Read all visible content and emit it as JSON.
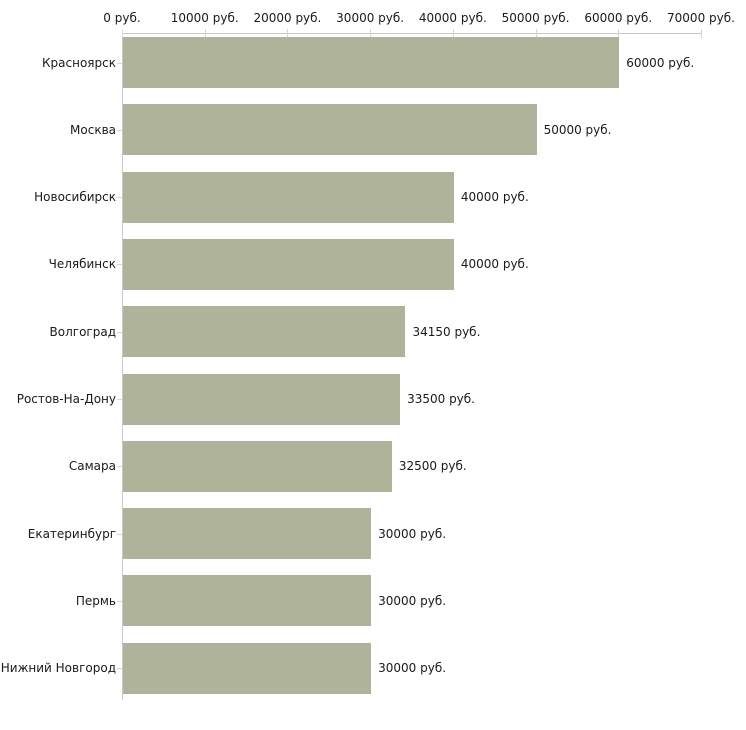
{
  "chart_data": {
    "type": "bar",
    "orientation": "horizontal",
    "title": "",
    "xlabel": "",
    "ylabel": "",
    "unit": "руб.",
    "categories": [
      "Красноярск",
      "Москва",
      "Новосибирск",
      "Челябинск",
      "Волгоград",
      "Ростов-На-Дону",
      "Самара",
      "Екатеринбург",
      "Пермь",
      "Нижний Новгород"
    ],
    "values": [
      60000,
      50000,
      40000,
      40000,
      34150,
      33500,
      32500,
      30000,
      30000,
      30000
    ],
    "value_labels": [
      "60000 руб.",
      "50000 руб.",
      "40000 руб.",
      "40000 руб.",
      "34150 руб.",
      "33500 руб.",
      "32500 руб.",
      "30000 руб.",
      "30000 руб.",
      "30000 руб."
    ],
    "x_axis": {
      "position": "top",
      "min": 0,
      "max": 70000,
      "ticks": [
        0,
        10000,
        20000,
        30000,
        40000,
        50000,
        60000,
        70000
      ],
      "tick_labels": [
        "0 руб.",
        "10000 руб.",
        "20000 руб.",
        "30000 руб.",
        "40000 руб.",
        "50000 руб.",
        "60000 руб.",
        "70000 руб."
      ]
    },
    "grid": false,
    "legend": false,
    "colors": {
      "bar": "#aeb39a",
      "axis_line": "#c9c9c9",
      "tick_mark": "#d8dcbf",
      "text": "#1a1a1a",
      "background": "#ffffff"
    }
  }
}
